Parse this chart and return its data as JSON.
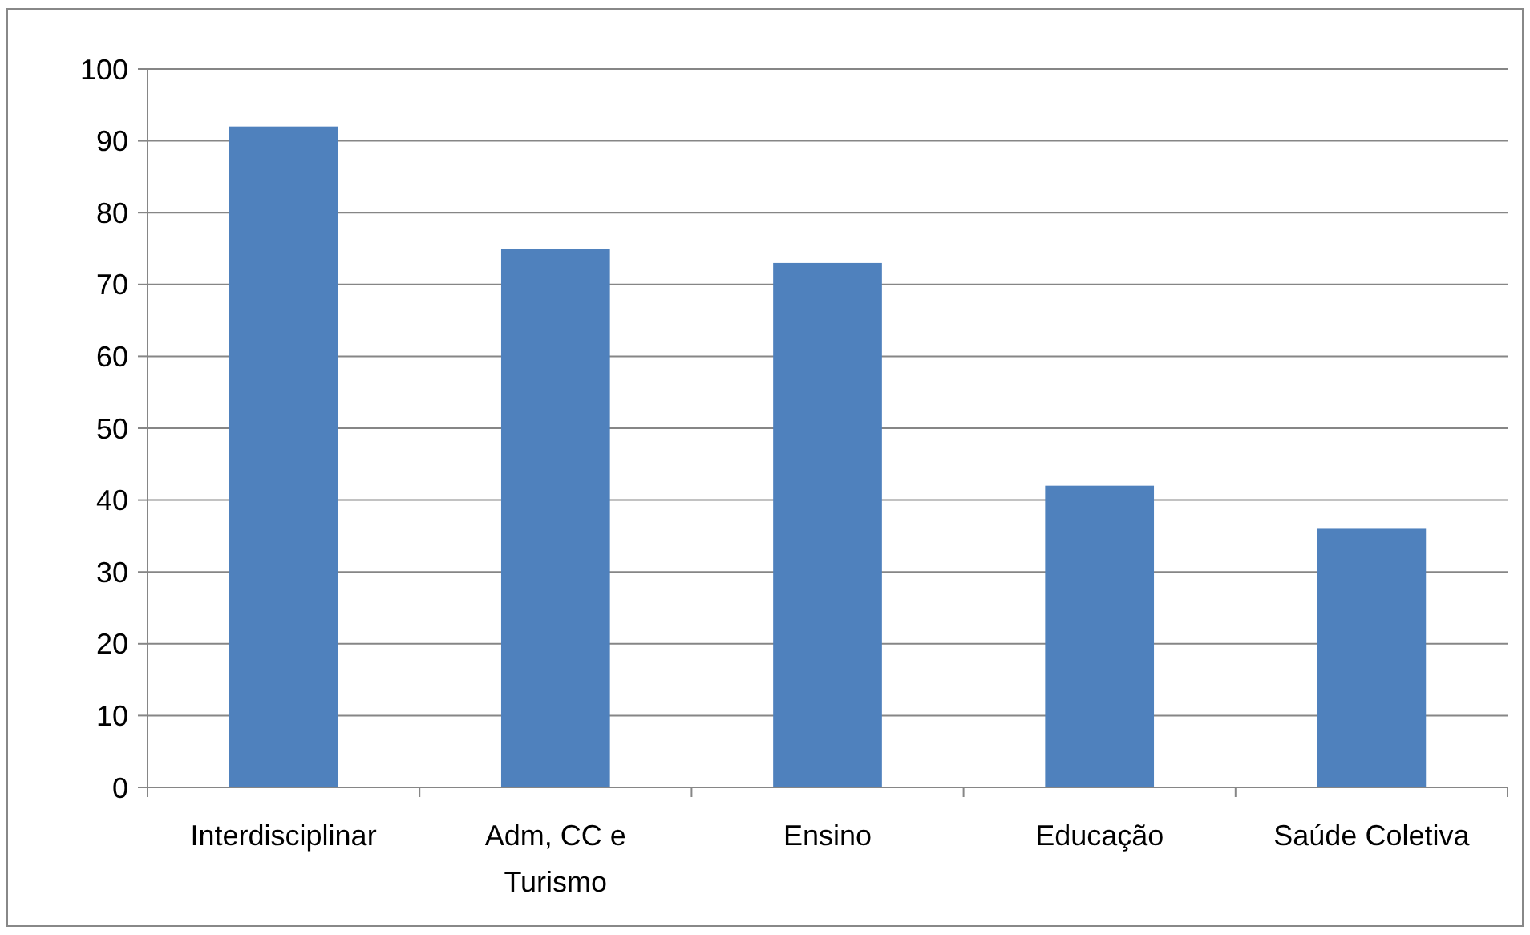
{
  "chart_data": {
    "type": "bar",
    "categories": [
      "Interdisciplinar",
      "Adm, CC e Turismo",
      "Ensino",
      "Educação",
      "Saúde Coletiva"
    ],
    "values": [
      92,
      75,
      73,
      42,
      36
    ],
    "color": "#4f81bd",
    "ylim": [
      0,
      100
    ],
    "yticks": [
      0,
      10,
      20,
      30,
      40,
      50,
      60,
      70,
      80,
      90,
      100
    ],
    "grid": "y"
  }
}
